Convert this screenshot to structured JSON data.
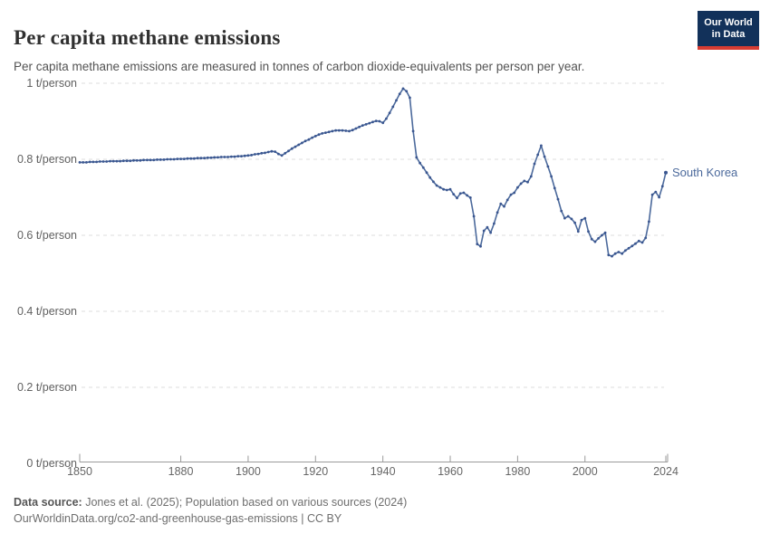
{
  "header": {
    "title": "Per capita methane emissions",
    "subtitle": "Per capita methane emissions are measured in tonnes of carbon dioxide-equivalents per person per year.",
    "logo": {
      "line1": "Our World",
      "line2": "in Data"
    }
  },
  "footer": {
    "datasource_label": "Data source:",
    "datasource_text": " Jones et al. (2025); Population based on various sources (2024)",
    "url_line": "OurWorldinData.org/co2-and-greenhouse-gas-emissions | CC BY"
  },
  "colors": {
    "line": "#4c6a9c",
    "dot": "#3a5690",
    "series_label": "#4c6a9c",
    "grid": "#dddddd",
    "axis": "#9a9a9a",
    "logo_bg": "#12315a",
    "logo_red": "#d73c32"
  },
  "chart_data": {
    "type": "line",
    "title": "Per capita methane emissions",
    "unit": "t/person",
    "xlim": [
      1850,
      2024
    ],
    "ylim": [
      0,
      1
    ],
    "grid": "horizontal-dashed",
    "x_ticks": [
      1850,
      1880,
      1900,
      1920,
      1940,
      1960,
      1980,
      2000,
      2024
    ],
    "y_ticks": [
      {
        "value": 1,
        "label": "1 t/person"
      },
      {
        "value": 0.8,
        "label": "0.8 t/person"
      },
      {
        "value": 0.6,
        "label": "0.6 t/person"
      },
      {
        "value": 0.4,
        "label": "0.4 t/person"
      },
      {
        "value": 0.2,
        "label": "0.2 t/person"
      },
      {
        "value": 0,
        "label": "0 t/person"
      }
    ],
    "series": [
      {
        "name": "South Korea",
        "x_start_year": 1850,
        "x_step": 1,
        "values": [
          0.792,
          0.792,
          0.792,
          0.793,
          0.793,
          0.793,
          0.794,
          0.794,
          0.794,
          0.795,
          0.795,
          0.795,
          0.795,
          0.796,
          0.796,
          0.796,
          0.797,
          0.797,
          0.797,
          0.798,
          0.798,
          0.798,
          0.798,
          0.799,
          0.799,
          0.799,
          0.8,
          0.8,
          0.8,
          0.801,
          0.801,
          0.801,
          0.802,
          0.802,
          0.802,
          0.803,
          0.803,
          0.803,
          0.804,
          0.804,
          0.805,
          0.805,
          0.806,
          0.806,
          0.806,
          0.807,
          0.807,
          0.808,
          0.808,
          0.809,
          0.81,
          0.811,
          0.813,
          0.814,
          0.816,
          0.817,
          0.819,
          0.821,
          0.82,
          0.814,
          0.81,
          0.816,
          0.822,
          0.828,
          0.833,
          0.838,
          0.843,
          0.848,
          0.852,
          0.857,
          0.861,
          0.865,
          0.868,
          0.87,
          0.872,
          0.874,
          0.876,
          0.876,
          0.876,
          0.875,
          0.874,
          0.877,
          0.881,
          0.885,
          0.889,
          0.892,
          0.895,
          0.898,
          0.901,
          0.9,
          0.896,
          0.907,
          0.922,
          0.938,
          0.955,
          0.972,
          0.986,
          0.979,
          0.962,
          0.874,
          0.805,
          0.79,
          0.778,
          0.765,
          0.752,
          0.741,
          0.731,
          0.726,
          0.721,
          0.719,
          0.721,
          0.708,
          0.698,
          0.71,
          0.712,
          0.705,
          0.699,
          0.65,
          0.577,
          0.571,
          0.612,
          0.621,
          0.607,
          0.631,
          0.66,
          0.683,
          0.676,
          0.693,
          0.707,
          0.712,
          0.726,
          0.736,
          0.743,
          0.74,
          0.755,
          0.788,
          0.812,
          0.836,
          0.807,
          0.781,
          0.755,
          0.724,
          0.695,
          0.664,
          0.645,
          0.65,
          0.643,
          0.633,
          0.61,
          0.64,
          0.645,
          0.61,
          0.59,
          0.583,
          0.592,
          0.6,
          0.607,
          0.548,
          0.545,
          0.552,
          0.556,
          0.552,
          0.56,
          0.566,
          0.572,
          0.578,
          0.585,
          0.581,
          0.593,
          0.636,
          0.707,
          0.714,
          0.7,
          0.729,
          0.765
        ]
      }
    ]
  }
}
